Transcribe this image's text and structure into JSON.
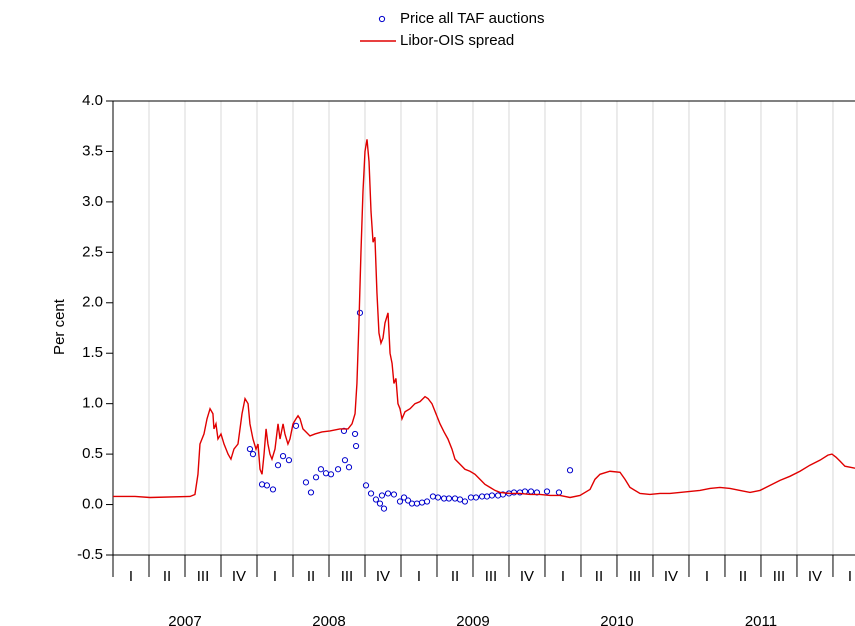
{
  "chart_data": {
    "type": "line",
    "y_label": "Per cent",
    "xlim": [
      2007,
      2012.153
    ],
    "ylim": [
      -0.5,
      4.0
    ],
    "yticks": [
      -0.5,
      {
        "value": 0.0,
        "label": "0.0"
      },
      0.5,
      {
        "value": 1.0,
        "label": "1.0"
      },
      1.5,
      {
        "value": 2.0,
        "label": "2.0"
      },
      2.5,
      {
        "value": 3.0,
        "label": "3.0"
      },
      3.5,
      {
        "value": 4.0,
        "label": "4.0"
      }
    ],
    "xticks": [
      {
        "value": 2007.0,
        "label": "I"
      },
      {
        "value": 2007.25,
        "label": "II"
      },
      {
        "value": 2007.5,
        "label": "III"
      },
      {
        "value": 2007.75,
        "label": "IV"
      },
      {
        "value": 2008.0,
        "label": "I"
      },
      {
        "value": 2008.25,
        "label": "II"
      },
      {
        "value": 2008.5,
        "label": "III"
      },
      {
        "value": 2008.75,
        "label": "IV"
      },
      {
        "value": 2009.0,
        "label": "I"
      },
      {
        "value": 2009.25,
        "label": "II"
      },
      {
        "value": 2009.5,
        "label": "III"
      },
      {
        "value": 2009.75,
        "label": "IV"
      },
      {
        "value": 2010.0,
        "label": "I"
      },
      {
        "value": 2010.25,
        "label": "II"
      },
      {
        "value": 2010.5,
        "label": "III"
      },
      {
        "value": 2010.75,
        "label": "IV"
      },
      {
        "value": 2011.0,
        "label": "I"
      },
      {
        "value": 2011.25,
        "label": "II"
      },
      {
        "value": 2011.5,
        "label": "III"
      },
      {
        "value": 2011.75,
        "label": "IV"
      },
      {
        "value": 2012.0,
        "label": "I"
      }
    ],
    "year_ticks": [
      2007,
      2008,
      2009,
      2010,
      2011
    ],
    "grid": "x",
    "legend": "top",
    "series": [
      {
        "name": "Price all TAF auctions",
        "type": "scatter",
        "color": "#0000cc",
        "x": [
          2007.951,
          2007.972,
          2008.035,
          2008.069,
          2008.111,
          2008.146,
          2008.181,
          2008.222,
          2008.271,
          2008.34,
          2008.375,
          2008.41,
          2008.444,
          2008.479,
          2008.514,
          2008.563,
          2008.604,
          2008.611,
          2008.639,
          2008.681,
          2008.688,
          2008.715,
          2008.757,
          2008.792,
          2008.826,
          2008.854,
          2008.868,
          2008.882,
          2008.91,
          2008.951,
          2008.993,
          2009.021,
          2009.049,
          2009.076,
          2009.111,
          2009.146,
          2009.181,
          2009.222,
          2009.257,
          2009.299,
          2009.333,
          2009.375,
          2009.41,
          2009.444,
          2009.486,
          2009.521,
          2009.563,
          2009.597,
          2009.632,
          2009.674,
          2009.708,
          2009.75,
          2009.785,
          2009.826,
          2009.861,
          2009.903,
          2009.944,
          2010.014,
          2010.097,
          2010.174
        ],
        "values": [
          0.55,
          0.5,
          0.2,
          0.19,
          0.15,
          0.39,
          0.48,
          0.44,
          0.78,
          0.22,
          0.12,
          0.27,
          0.35,
          0.31,
          0.3,
          0.35,
          0.73,
          0.44,
          0.37,
          0.7,
          0.58,
          1.9,
          0.19,
          0.11,
          0.05,
          0.01,
          0.09,
          -0.04,
          0.11,
          0.1,
          0.03,
          0.07,
          0.04,
          0.01,
          0.01,
          0.02,
          0.03,
          0.08,
          0.07,
          0.06,
          0.06,
          0.06,
          0.05,
          0.03,
          0.07,
          0.07,
          0.08,
          0.08,
          0.09,
          0.09,
          0.1,
          0.11,
          0.12,
          0.12,
          0.13,
          0.13,
          0.12,
          0.13,
          0.12,
          0.34
        ]
      },
      {
        "name": "Libor-OIS spread",
        "type": "line",
        "color": "#e00000",
        "x": [
          2007.0,
          2007.153,
          2007.257,
          2007.535,
          2007.569,
          2007.59,
          2007.604,
          2007.632,
          2007.653,
          2007.674,
          2007.694,
          2007.701,
          2007.715,
          2007.729,
          2007.75,
          2007.771,
          2007.799,
          2007.819,
          2007.84,
          2007.868,
          2007.896,
          2007.917,
          2007.938,
          2007.951,
          2007.972,
          2007.993,
          2008.007,
          2008.021,
          2008.035,
          2008.049,
          2008.063,
          2008.076,
          2008.09,
          2008.104,
          2008.125,
          2008.146,
          2008.16,
          2008.181,
          2008.194,
          2008.215,
          2008.229,
          2008.25,
          2008.271,
          2008.285,
          2008.299,
          2008.319,
          2008.34,
          2008.368,
          2008.403,
          2008.451,
          2008.507,
          2008.576,
          2008.632,
          2008.66,
          2008.681,
          2008.694,
          2008.708,
          2008.722,
          2008.736,
          2008.75,
          2008.764,
          2008.778,
          2008.792,
          2008.806,
          2008.819,
          2008.833,
          2008.847,
          2008.861,
          2008.875,
          2008.889,
          2008.91,
          2008.924,
          2008.938,
          2008.951,
          2008.965,
          2008.979,
          2008.993,
          2009.007,
          2009.028,
          2009.063,
          2009.097,
          2009.132,
          2009.167,
          2009.188,
          2009.215,
          2009.243,
          2009.271,
          2009.299,
          2009.326,
          2009.354,
          2009.375,
          2009.41,
          2009.444,
          2009.479,
          2009.514,
          2009.549,
          2009.583,
          2009.618,
          2009.653,
          2009.688,
          2009.757,
          2009.826,
          2009.896,
          2009.965,
          2010.035,
          2010.104,
          2010.174,
          2010.243,
          2010.313,
          2010.347,
          2010.382,
          2010.451,
          2010.521,
          2010.556,
          2010.59,
          2010.66,
          2010.729,
          2010.799,
          2010.868,
          2010.938,
          2011.007,
          2011.076,
          2011.146,
          2011.215,
          2011.285,
          2011.354,
          2011.424,
          2011.493,
          2011.563,
          2011.632,
          2011.701,
          2011.771,
          2011.84,
          2011.91,
          2011.965,
          2011.993,
          2012.021,
          2012.049,
          2012.083,
          2012.153
        ],
        "values": [
          0.08,
          0.08,
          0.07,
          0.08,
          0.1,
          0.3,
          0.6,
          0.7,
          0.85,
          0.95,
          0.9,
          0.75,
          0.8,
          0.65,
          0.7,
          0.6,
          0.5,
          0.45,
          0.55,
          0.6,
          0.9,
          1.05,
          1.0,
          0.8,
          0.65,
          0.55,
          0.6,
          0.35,
          0.3,
          0.5,
          0.75,
          0.6,
          0.5,
          0.45,
          0.55,
          0.8,
          0.65,
          0.8,
          0.7,
          0.6,
          0.65,
          0.8,
          0.85,
          0.88,
          0.85,
          0.75,
          0.72,
          0.68,
          0.7,
          0.72,
          0.73,
          0.75,
          0.75,
          0.8,
          0.9,
          1.2,
          1.8,
          2.5,
          3.1,
          3.5,
          3.62,
          3.4,
          2.9,
          2.6,
          2.65,
          2.1,
          1.7,
          1.6,
          1.65,
          1.8,
          1.9,
          1.5,
          1.4,
          1.2,
          1.25,
          1.0,
          0.95,
          0.85,
          0.92,
          0.95,
          1.0,
          1.02,
          1.07,
          1.05,
          1.0,
          0.9,
          0.8,
          0.72,
          0.65,
          0.55,
          0.45,
          0.4,
          0.35,
          0.33,
          0.3,
          0.25,
          0.2,
          0.17,
          0.14,
          0.12,
          0.11,
          0.11,
          0.1,
          0.1,
          0.09,
          0.09,
          0.07,
          0.09,
          0.15,
          0.25,
          0.3,
          0.33,
          0.32,
          0.25,
          0.17,
          0.11,
          0.1,
          0.11,
          0.11,
          0.12,
          0.13,
          0.14,
          0.16,
          0.17,
          0.16,
          0.14,
          0.12,
          0.14,
          0.19,
          0.24,
          0.28,
          0.33,
          0.39,
          0.44,
          0.49,
          0.5,
          0.47,
          0.43,
          0.38,
          0.36
        ]
      }
    ]
  }
}
